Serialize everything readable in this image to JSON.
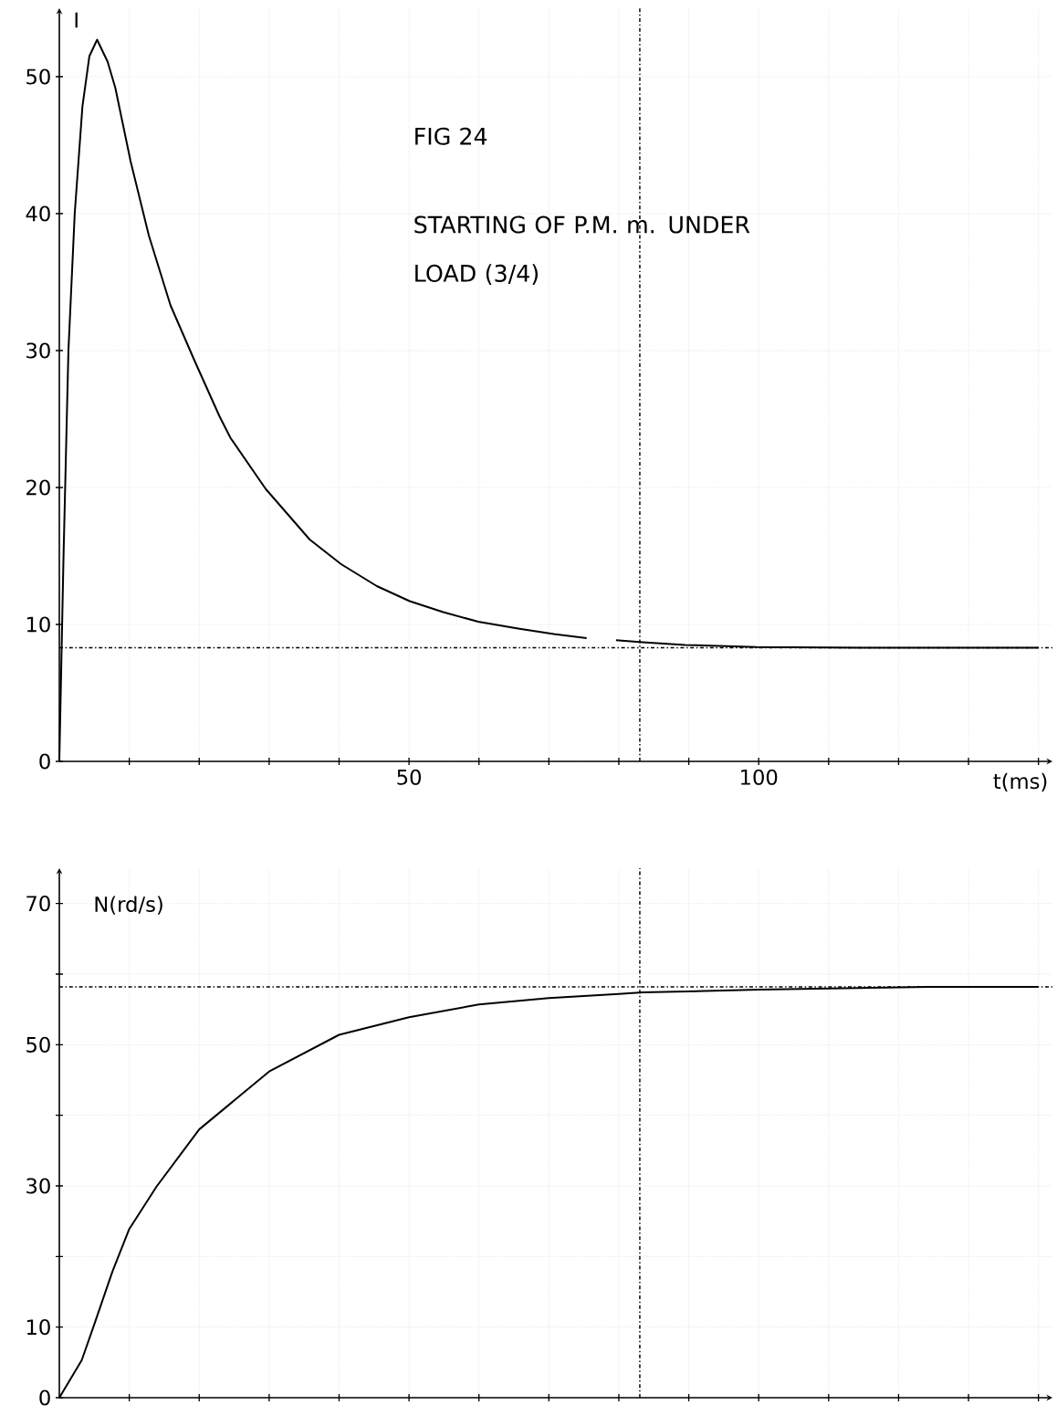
{
  "chart_data": [
    {
      "type": "line",
      "title": "FIG 24",
      "subtitle": "STARTING OF P.M. m. UNDER LOAD (3/4)",
      "xlabel": "t(ms)",
      "ylabel": "I",
      "series": [
        {
          "color": "#000000",
          "x": [
            0,
            0.6,
            1.3,
            2.2,
            3.3,
            4.3,
            5.4,
            6.9,
            8,
            10.2,
            12.8,
            15.9,
            19.3,
            22.9,
            24.5,
            29.5,
            35.8,
            40.3,
            45.4,
            50.1,
            54.9,
            59.9,
            65.6,
            70.7,
            75.4,
            77.5,
            79.6,
            83.4,
            89.5,
            99.6,
            114.6,
            140
          ],
          "values": [
            0,
            15,
            30,
            40,
            47.8,
            51.5,
            52.7,
            51.1,
            49.2,
            43.8,
            38.4,
            33.3,
            29.3,
            25.2,
            23.6,
            19.9,
            16.2,
            14.4,
            12.8,
            11.7,
            10.9,
            10.2,
            9.7,
            9.3,
            9.0,
            null,
            8.85,
            8.7,
            8.5,
            8.35,
            8.3,
            8.3
          ]
        }
      ],
      "xlim": [
        0,
        142
      ],
      "ylim": [
        0,
        55
      ],
      "xticks": [
        {
          "value": 10,
          "label": null
        },
        {
          "value": 20,
          "label": null
        },
        {
          "value": 30,
          "label": null
        },
        {
          "value": 40,
          "label": null
        },
        50,
        {
          "value": 60,
          "label": null
        },
        {
          "value": 70,
          "label": null
        },
        {
          "value": 80,
          "label": null
        },
        {
          "value": 90,
          "label": null
        },
        100,
        {
          "value": 110,
          "label": null
        },
        {
          "value": 120,
          "label": null
        },
        {
          "value": 130,
          "label": null
        },
        {
          "value": 140,
          "label": null
        }
      ],
      "yticks": [
        0,
        10,
        20,
        30,
        40,
        50
      ],
      "ref_lines": [
        {
          "axis": "y",
          "value": 8.3,
          "line_style": "dashdot"
        },
        {
          "axis": "x",
          "value": 83,
          "line_style": "dashdot"
        }
      ],
      "grid": true
    },
    {
      "type": "line",
      "ylabel": "N(rd/s)",
      "series": [
        {
          "color": "#000000",
          "x": [
            0,
            3.2,
            5,
            7.6,
            10,
            13.9,
            20,
            30,
            40,
            50,
            60,
            70,
            80,
            83.4,
            100,
            125,
            140
          ],
          "values": [
            0,
            5.3,
            10.4,
            17.9,
            23.9,
            29.9,
            38,
            46.2,
            51.4,
            53.9,
            55.7,
            56.6,
            57.2,
            57.4,
            57.8,
            58.2,
            58.2
          ]
        }
      ],
      "xlim": [
        0,
        142
      ],
      "ylim": [
        0,
        75
      ],
      "xticks": [
        {
          "value": 10,
          "label": null
        },
        {
          "value": 20,
          "label": null
        },
        {
          "value": 30,
          "label": null
        },
        {
          "value": 40,
          "label": null
        },
        {
          "value": 50,
          "label": null
        },
        {
          "value": 60,
          "label": null
        },
        {
          "value": 70,
          "label": null
        },
        {
          "value": 80,
          "label": null
        },
        {
          "value": 90,
          "label": null
        },
        {
          "value": 100,
          "label": null
        },
        {
          "value": 110,
          "label": null
        },
        {
          "value": 120,
          "label": null
        },
        {
          "value": 130,
          "label": null
        },
        {
          "value": 140,
          "label": null
        }
      ],
      "yticks": [
        0,
        10,
        {
          "value": 20,
          "label": null
        },
        30,
        {
          "value": 40,
          "label": null
        },
        50,
        {
          "value": 60,
          "label": null
        },
        70
      ],
      "tick_labels": "y",
      "ref_lines": [
        {
          "axis": "y",
          "value": 58.2,
          "line_style": "dashdot"
        },
        {
          "axis": "x",
          "value": 83,
          "line_style": "dashdot"
        }
      ],
      "grid": true
    }
  ]
}
